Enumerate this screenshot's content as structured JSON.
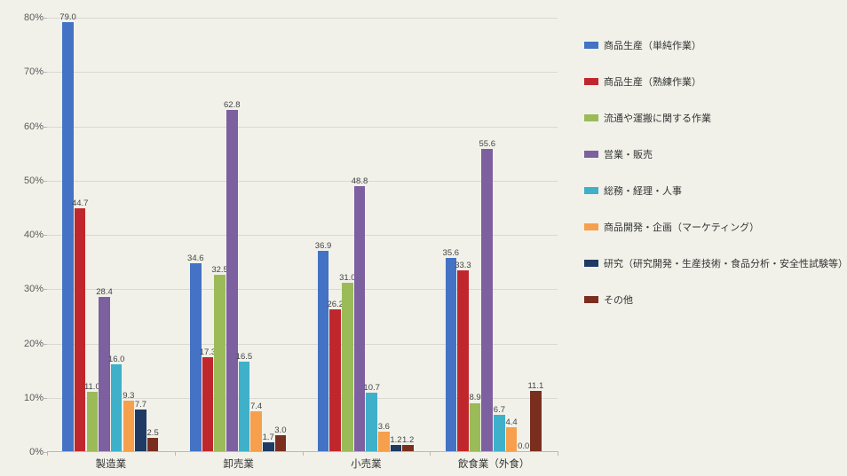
{
  "chart": {
    "type": "bar",
    "background_color": "#f1f1ea",
    "grid_color": "#d9d9d2",
    "axis_color": "#b8b8b8",
    "ylim": [
      0,
      80
    ],
    "ytick_step": 10,
    "ytick_suffix": "%",
    "label_fontsize": 11,
    "value_label_fontsize": 9.5,
    "bar_width_ratio": 0.095,
    "categories": [
      "製造業",
      "卸売業",
      "小売業",
      "飲食業（外食）"
    ],
    "series": [
      {
        "label": "商品生産（単純作業）",
        "color": "#4472c4",
        "values": [
          79.0,
          34.6,
          36.9,
          35.6
        ]
      },
      {
        "label": "商品生産（熟練作業）",
        "color": "#c0272d",
        "values": [
          44.7,
          17.3,
          26.2,
          33.3
        ]
      },
      {
        "label": "流通や運搬に関する作業",
        "color": "#9bbb59",
        "values": [
          11.0,
          32.5,
          31.0,
          8.9
        ]
      },
      {
        "label": "営業・販売",
        "color": "#7d60a0",
        "values": [
          28.4,
          62.8,
          48.8,
          55.6
        ]
      },
      {
        "label": "総務・経理・人事",
        "color": "#3fb0c9",
        "values": [
          16.0,
          16.5,
          10.7,
          6.7
        ]
      },
      {
        "label": "商品開発・企画（マーケティング）",
        "color": "#f6a04d",
        "values": [
          9.3,
          7.4,
          3.6,
          4.4
        ]
      },
      {
        "label": "研究（研究開発・生産技術・食品分析・安全性試験等）",
        "color": "#1f3a63",
        "values": [
          7.7,
          1.7,
          1.2,
          0.0
        ]
      },
      {
        "label": "その他",
        "color": "#7a2e1e",
        "values": [
          2.5,
          3.0,
          1.2,
          11.1
        ]
      }
    ]
  }
}
